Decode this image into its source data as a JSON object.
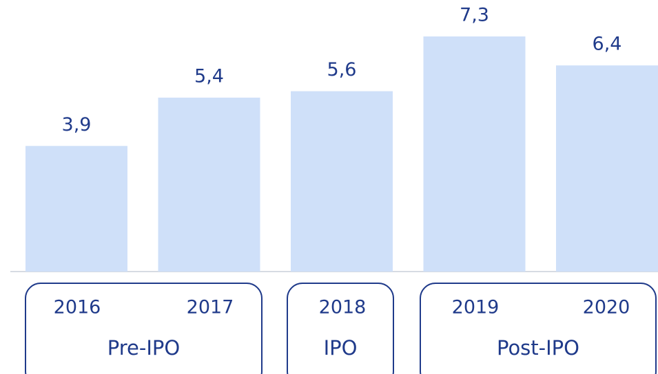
{
  "chart_data": {
    "type": "bar",
    "categories": [
      "2016",
      "2017",
      "2018",
      "2019",
      "2020"
    ],
    "values": [
      3.9,
      5.4,
      5.6,
      7.3,
      6.4
    ],
    "value_labels": [
      "3,9",
      "5,4",
      "5,6",
      "7,3",
      "6,4"
    ],
    "color": "#cfe0f9",
    "groups": [
      {
        "label": "Pre-IPO"
      },
      {
        "label": "IPO"
      },
      {
        "label": "Post-IPO"
      }
    ]
  }
}
